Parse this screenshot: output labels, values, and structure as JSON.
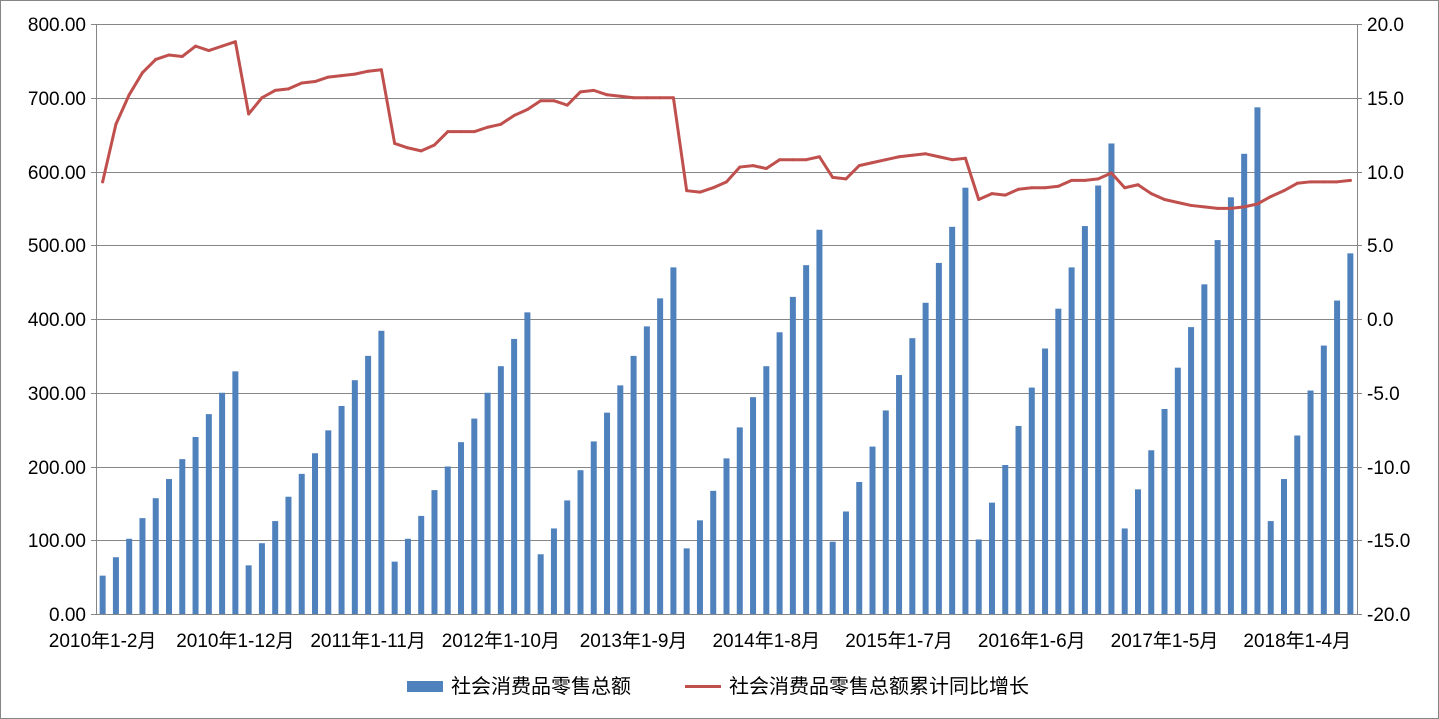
{
  "chart_data": {
    "type": "bar",
    "categories": [
      "2010年1-2月",
      "",
      "",
      "",
      "",
      "",
      "",
      "",
      "",
      "",
      "2010年1-12月",
      "",
      "",
      "",
      "",
      "",
      "",
      "",
      "",
      "",
      "2011年1-11月",
      "",
      "",
      "",
      "",
      "",
      "",
      "",
      "",
      "",
      "2012年1-10月",
      "",
      "",
      "",
      "",
      "",
      "",
      "",
      "",
      "",
      "2013年1-9月",
      "",
      "",
      "",
      "",
      "",
      "",
      "",
      "",
      "",
      "2014年1-8月",
      "",
      "",
      "",
      "",
      "",
      "",
      "",
      "",
      "",
      "2015年1-7月",
      "",
      "",
      "",
      "",
      "",
      "",
      "",
      "",
      "",
      "2016年1-6月",
      "",
      "",
      "",
      "",
      "",
      "",
      "",
      "",
      "",
      "2017年1-5月",
      "",
      "",
      "",
      "",
      "",
      "",
      "",
      "",
      "",
      "2018年1-4月",
      "",
      "",
      "",
      ""
    ],
    "series": [
      {
        "name": "社会消费品零售总额",
        "type": "bar",
        "axis": "left",
        "color": "#4F81BD",
        "values": [
          52,
          77,
          102,
          130,
          157,
          183,
          210,
          240,
          271,
          300,
          329,
          66,
          96,
          126,
          159,
          190,
          218,
          249,
          282,
          317,
          350,
          384,
          71,
          102,
          133,
          168,
          200,
          233,
          265,
          300,
          336,
          373,
          409,
          81,
          116,
          154,
          195,
          234,
          273,
          310,
          350,
          390,
          428,
          470,
          89,
          127,
          167,
          211,
          253,
          294,
          336,
          382,
          430,
          473,
          521,
          98,
          139,
          179,
          227,
          276,
          324,
          374,
          422,
          476,
          525,
          578,
          101,
          151,
          202,
          255,
          307,
          360,
          414,
          470,
          526,
          581,
          638,
          116,
          169,
          222,
          278,
          334,
          389,
          447,
          507,
          565,
          624,
          687,
          126,
          183,
          242,
          303,
          364,
          425,
          489
        ]
      },
      {
        "name": "社会消费品零售总额累计同比增长",
        "type": "line",
        "axis": "right",
        "color": "#C0504D",
        "values": [
          9.3,
          13.2,
          15.2,
          16.7,
          17.6,
          17.9,
          17.8,
          18.5,
          18.2,
          18.5,
          18.8,
          13.9,
          15.0,
          15.5,
          15.6,
          16.0,
          16.1,
          16.4,
          16.5,
          16.6,
          16.8,
          16.9,
          11.9,
          11.6,
          11.4,
          11.8,
          12.7,
          12.7,
          12.7,
          13.0,
          13.2,
          13.8,
          14.2,
          14.8,
          14.8,
          14.5,
          15.4,
          15.5,
          15.2,
          15.1,
          15.0,
          15.0,
          15.0,
          15.0,
          8.7,
          8.6,
          8.9,
          9.3,
          10.3,
          10.4,
          10.2,
          10.8,
          10.8,
          10.8,
          11.0,
          9.6,
          9.5,
          10.4,
          10.6,
          10.8,
          11.0,
          11.1,
          11.2,
          11.0,
          10.8,
          10.9,
          8.1,
          8.5,
          8.4,
          8.8,
          8.9,
          8.9,
          9.0,
          9.4,
          9.4,
          9.5,
          9.9,
          8.9,
          9.1,
          8.5,
          8.1,
          7.9,
          7.7,
          7.6,
          7.5,
          7.5,
          7.6,
          7.8,
          8.3,
          8.7,
          9.2,
          9.3,
          9.3,
          9.3,
          9.4
        ]
      }
    ],
    "ylim": [
      0,
      800
    ],
    "y2lim": [
      -20,
      20
    ],
    "y_ticks": [
      "0.00",
      "100.00",
      "200.00",
      "300.00",
      "400.00",
      "500.00",
      "600.00",
      "700.00",
      "800.00"
    ],
    "y2_ticks": [
      "-20.0",
      "-15.0",
      "-10.0",
      "-5.0",
      "0.0",
      "5.0",
      "10.0",
      "15.0",
      "20.0"
    ],
    "grid": true,
    "legend": "bottom"
  }
}
